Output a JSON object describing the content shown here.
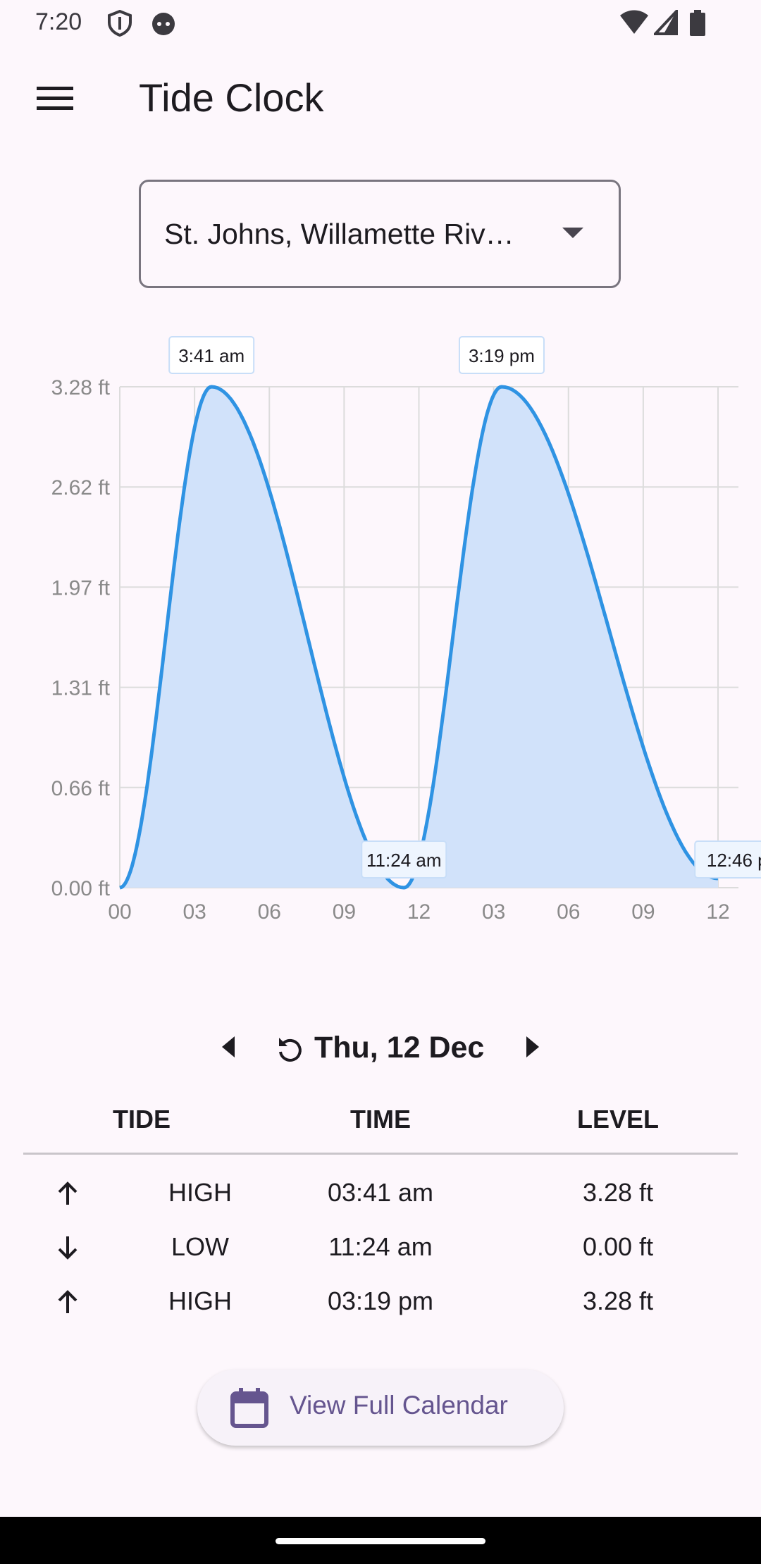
{
  "status_bar": {
    "time": "7:20",
    "icons": [
      "shield-icon",
      "android-face-icon",
      "wifi-icon",
      "signal-icon",
      "battery-icon"
    ]
  },
  "app_bar": {
    "menu_icon": "hamburger-menu-icon",
    "title": "Tide Clock"
  },
  "station": {
    "selected": "St. Johns, Willamette Riv…",
    "dropdown_icon": "caret-down-icon"
  },
  "colors": {
    "background": "#fdf7fc",
    "line": "#2f93e3",
    "fill": "#d1e2fa",
    "accent": "#65558f",
    "grid": "#dcdcdc"
  },
  "chart_data": {
    "type": "area",
    "title": "",
    "xlabel": "",
    "ylabel": "",
    "grid": true,
    "x_ticks": [
      "00",
      "03",
      "06",
      "09",
      "12",
      "03",
      "06",
      "09",
      "12"
    ],
    "y_ticks": [
      "0.00 ft",
      "0.66 ft",
      "1.31 ft",
      "1.97 ft",
      "2.62 ft",
      "3.28 ft"
    ],
    "xlim_hours": [
      0,
      24
    ],
    "ylim": [
      0,
      3.28
    ],
    "series": [
      {
        "points": [
          [
            0,
            0.0
          ],
          [
            3.68,
            3.28
          ],
          [
            11.4,
            0.0
          ],
          [
            15.32,
            3.28
          ],
          [
            24.0,
            0.06
          ]
        ]
      }
    ],
    "annotations": [
      {
        "label": "3:41 am",
        "x": 3.68,
        "y": 3.28,
        "position": "above"
      },
      {
        "label": "11:24 am",
        "x": 11.4,
        "y": 0.0,
        "position": "on"
      },
      {
        "label": "3:19 pm",
        "x": 15.32,
        "y": 3.28,
        "position": "above"
      },
      {
        "label": "12:46 p",
        "x": 24.77,
        "y": 0.0,
        "position": "on"
      }
    ]
  },
  "date_nav": {
    "prev_icon": "triangle-left-icon",
    "reset_icon": "refresh-icon",
    "date": "Thu, 12 Dec",
    "next_icon": "triangle-right-icon"
  },
  "table": {
    "headers": [
      "TIDE",
      "TIME",
      "LEVEL"
    ],
    "rows": [
      {
        "direction": "up-arrow-icon",
        "tide": "HIGH",
        "time": "03:41 am",
        "level": "3.28 ft"
      },
      {
        "direction": "down-arrow-icon",
        "tide": "LOW",
        "time": "11:24 am",
        "level": "0.00 ft"
      },
      {
        "direction": "up-arrow-icon",
        "tide": "HIGH",
        "time": "03:19 pm",
        "level": "3.28 ft"
      }
    ]
  },
  "calendar_button": {
    "icon": "calendar-icon",
    "label": "View Full Calendar"
  }
}
